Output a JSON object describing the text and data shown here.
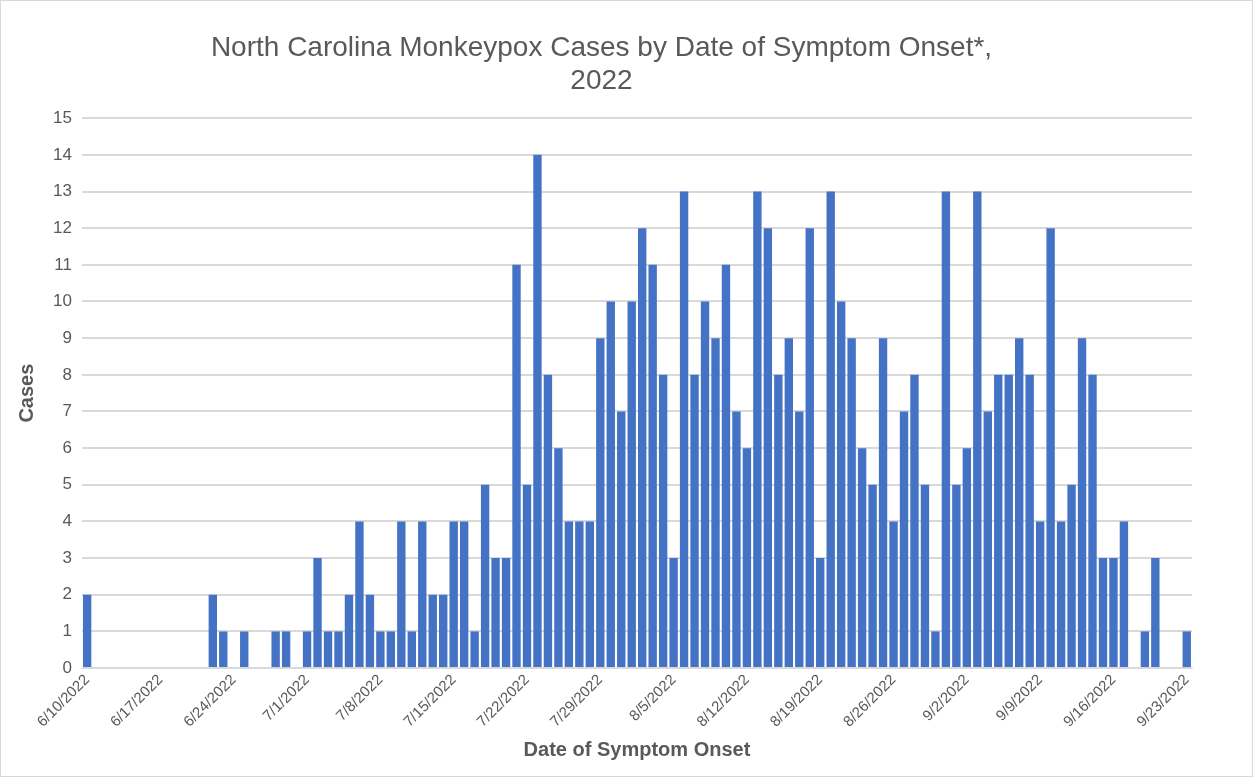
{
  "chart_data": {
    "type": "bar",
    "title": "North Carolina Monkeypox Cases by Date of Symptom Onset*, 2022",
    "xlabel": "Date of Symptom Onset",
    "ylabel": "Cases",
    "categories": [
      "6/10/2022",
      null,
      null,
      null,
      null,
      null,
      null,
      "6/17/2022",
      null,
      null,
      null,
      null,
      null,
      null,
      "6/24/2022",
      null,
      null,
      null,
      null,
      null,
      null,
      "7/1/2022",
      null,
      null,
      null,
      null,
      null,
      null,
      "7/8/2022",
      null,
      null,
      null,
      null,
      null,
      null,
      "7/15/2022",
      null,
      null,
      null,
      null,
      null,
      null,
      "7/22/2022",
      null,
      null,
      null,
      null,
      null,
      null,
      "7/29/2022",
      null,
      null,
      null,
      null,
      null,
      null,
      "8/5/2022",
      null,
      null,
      null,
      null,
      null,
      null,
      "8/12/2022",
      null,
      null,
      null,
      null,
      null,
      null,
      "8/19/2022",
      null,
      null,
      null,
      null,
      null,
      null,
      "8/26/2022",
      null,
      null,
      null,
      null,
      null,
      null,
      "9/2/2022",
      null,
      null,
      null,
      null,
      null,
      null,
      "9/9/2022",
      null,
      null,
      null,
      null,
      null,
      null,
      "9/16/2022",
      null,
      null,
      null,
      null,
      null,
      null,
      "9/23/2022"
    ],
    "values": [
      2,
      0,
      0,
      0,
      0,
      0,
      0,
      0,
      0,
      0,
      0,
      0,
      2,
      1,
      0,
      1,
      0,
      0,
      1,
      1,
      0,
      1,
      3,
      1,
      1,
      2,
      4,
      2,
      1,
      1,
      4,
      1,
      4,
      2,
      2,
      4,
      4,
      1,
      5,
      3,
      3,
      11,
      5,
      14,
      8,
      6,
      4,
      4,
      4,
      9,
      10,
      7,
      10,
      12,
      11,
      8,
      3,
      13,
      8,
      10,
      9,
      11,
      7,
      6,
      13,
      12,
      8,
      9,
      7,
      12,
      3,
      13,
      10,
      9,
      6,
      5,
      9,
      4,
      7,
      8,
      5,
      1,
      13,
      5,
      6,
      13,
      7,
      8,
      8,
      9,
      8,
      4,
      12,
      4,
      5,
      9,
      8,
      3,
      3,
      4,
      0,
      1,
      3,
      0,
      0,
      1
    ],
    "color": "#4472c4",
    "ylim": [
      0,
      15
    ],
    "yticks": [
      0,
      1,
      2,
      3,
      4,
      5,
      6,
      7,
      8,
      9,
      10,
      11,
      12,
      13,
      14,
      15
    ],
    "grid": "y"
  }
}
